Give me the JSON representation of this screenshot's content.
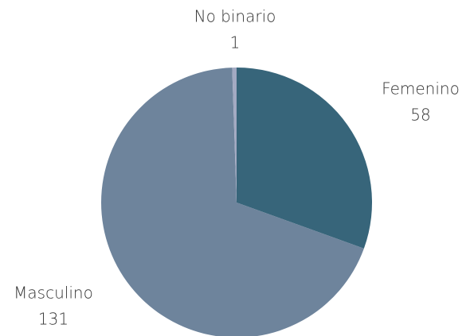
{
  "chart_data": {
    "type": "pie",
    "categories": [
      "Femenino",
      "Masculino",
      "No binario"
    ],
    "values": [
      58,
      131,
      1
    ],
    "colors": [
      "#37657a",
      "#6e849c",
      "#a3aac2"
    ]
  }
}
